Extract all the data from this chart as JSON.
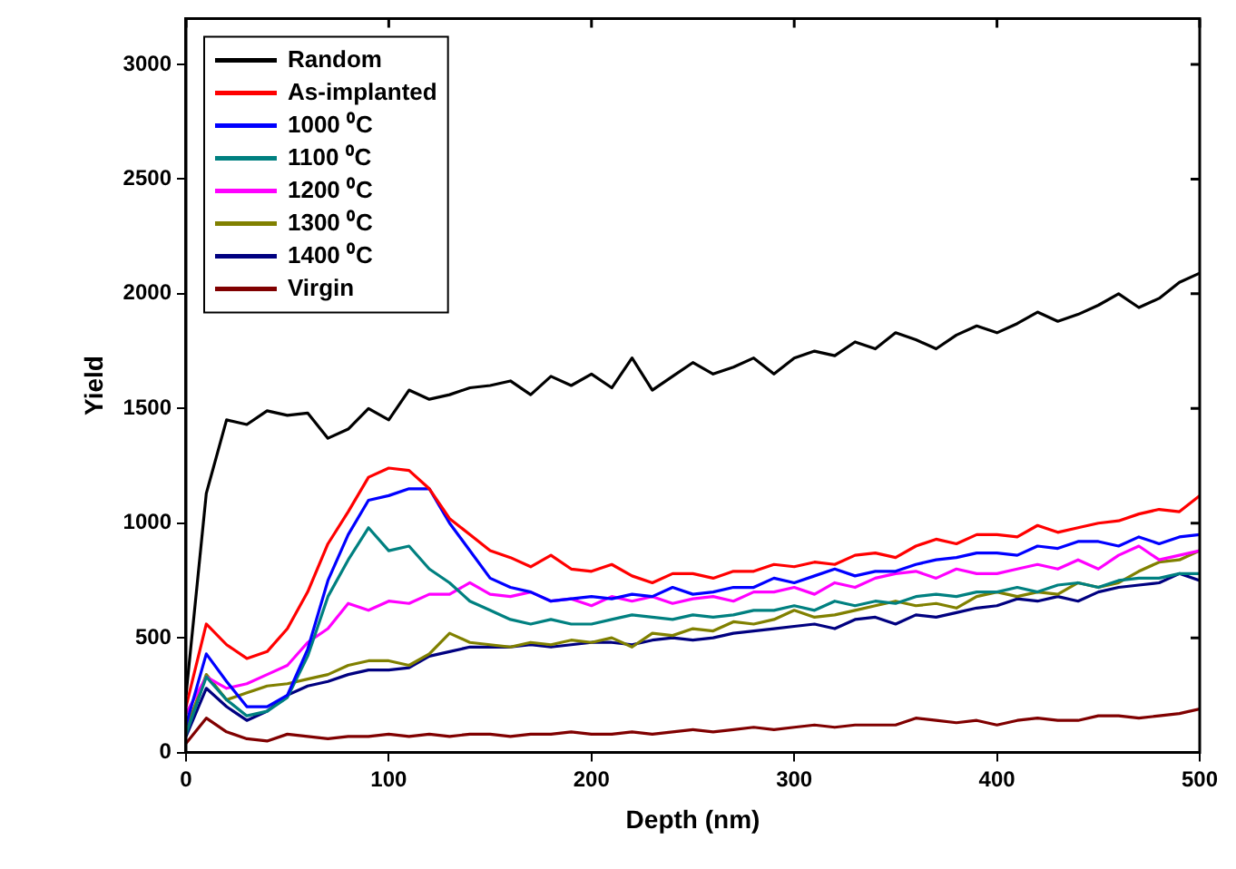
{
  "chart_data": {
    "type": "line",
    "xlabel": "Depth (nm)",
    "ylabel": "Yield",
    "x": [
      0,
      10,
      20,
      30,
      40,
      50,
      60,
      70,
      80,
      90,
      100,
      110,
      120,
      130,
      140,
      150,
      160,
      170,
      180,
      190,
      200,
      210,
      220,
      230,
      240,
      250,
      260,
      270,
      280,
      290,
      300,
      310,
      320,
      330,
      340,
      350,
      360,
      370,
      380,
      390,
      400,
      410,
      420,
      430,
      440,
      450,
      460,
      470,
      480,
      490,
      500
    ],
    "xlim": [
      0,
      500
    ],
    "xticks": [
      0,
      100,
      200,
      300,
      400,
      500
    ],
    "ylim": [
      0,
      3200
    ],
    "yticks": [
      0,
      500,
      1000,
      1500,
      2000,
      2500,
      3000
    ],
    "grid": false,
    "legend": "top left",
    "marker": "none",
    "line_style": "solid",
    "series": [
      {
        "name": "Random",
        "color": "#000000",
        "values": [
          250,
          1130,
          1450,
          1430,
          1490,
          1470,
          1480,
          1370,
          1410,
          1500,
          1450,
          1580,
          1540,
          1560,
          1590,
          1600,
          1620,
          1560,
          1640,
          1600,
          1650,
          1590,
          1720,
          1580,
          1640,
          1700,
          1650,
          1680,
          1720,
          1650,
          1720,
          1750,
          1730,
          1790,
          1760,
          1830,
          1800,
          1760,
          1820,
          1860,
          1830,
          1870,
          1920,
          1880,
          1910,
          1950,
          2000,
          1940,
          1980,
          2050,
          2090
        ]
      },
      {
        "name": "As-implanted",
        "color": "#ff0000",
        "values": [
          200,
          560,
          470,
          410,
          440,
          540,
          700,
          910,
          1050,
          1200,
          1240,
          1230,
          1150,
          1020,
          950,
          880,
          850,
          810,
          860,
          800,
          790,
          820,
          770,
          740,
          780,
          780,
          760,
          790,
          790,
          820,
          810,
          830,
          820,
          860,
          870,
          850,
          900,
          930,
          910,
          950,
          950,
          940,
          990,
          960,
          980,
          1000,
          1010,
          1040,
          1060,
          1050,
          1120
        ]
      },
      {
        "name": "1000 ⁰C",
        "color": "#0000ff",
        "values": [
          120,
          430,
          310,
          200,
          200,
          250,
          450,
          750,
          950,
          1100,
          1120,
          1150,
          1150,
          1000,
          880,
          760,
          720,
          700,
          660,
          670,
          680,
          670,
          690,
          680,
          720,
          690,
          700,
          720,
          720,
          760,
          740,
          770,
          800,
          770,
          790,
          790,
          820,
          840,
          850,
          870,
          870,
          860,
          900,
          890,
          920,
          920,
          900,
          940,
          910,
          940,
          950
        ]
      },
      {
        "name": "1100 ⁰C",
        "color": "#008080",
        "values": [
          80,
          330,
          230,
          160,
          180,
          240,
          420,
          680,
          840,
          980,
          880,
          900,
          800,
          740,
          660,
          620,
          580,
          560,
          580,
          560,
          560,
          580,
          600,
          590,
          580,
          600,
          590,
          600,
          620,
          620,
          640,
          620,
          660,
          640,
          660,
          650,
          680,
          690,
          680,
          700,
          700,
          720,
          700,
          730,
          740,
          720,
          750,
          760,
          760,
          780,
          780
        ]
      },
      {
        "name": "1200 ⁰C",
        "color": "#ff00ff",
        "values": [
          170,
          330,
          280,
          300,
          340,
          380,
          480,
          540,
          650,
          620,
          660,
          650,
          690,
          690,
          740,
          690,
          680,
          700,
          660,
          670,
          640,
          680,
          660,
          680,
          650,
          670,
          680,
          660,
          700,
          700,
          720,
          690,
          740,
          720,
          760,
          780,
          790,
          760,
          800,
          780,
          780,
          800,
          820,
          800,
          840,
          800,
          860,
          900,
          840,
          860,
          880
        ]
      },
      {
        "name": "1300 ⁰C",
        "color": "#808000",
        "values": [
          100,
          340,
          230,
          260,
          290,
          300,
          320,
          340,
          380,
          400,
          400,
          380,
          430,
          520,
          480,
          470,
          460,
          480,
          470,
          490,
          480,
          500,
          460,
          520,
          510,
          540,
          530,
          570,
          560,
          580,
          620,
          590,
          600,
          620,
          640,
          660,
          640,
          650,
          630,
          680,
          700,
          680,
          700,
          690,
          740,
          720,
          740,
          790,
          830,
          840,
          880
        ]
      },
      {
        "name": "1400 ⁰C",
        "color": "#000080",
        "values": [
          70,
          280,
          200,
          140,
          180,
          250,
          290,
          310,
          340,
          360,
          360,
          370,
          420,
          440,
          460,
          460,
          460,
          470,
          460,
          470,
          480,
          480,
          470,
          490,
          500,
          490,
          500,
          520,
          530,
          540,
          550,
          560,
          540,
          580,
          590,
          560,
          600,
          590,
          610,
          630,
          640,
          670,
          660,
          680,
          660,
          700,
          720,
          730,
          740,
          780,
          750
        ]
      },
      {
        "name": "Virgin",
        "color": "#800000",
        "values": [
          40,
          150,
          90,
          60,
          50,
          80,
          70,
          60,
          70,
          70,
          80,
          70,
          80,
          70,
          80,
          80,
          70,
          80,
          80,
          90,
          80,
          80,
          90,
          80,
          90,
          100,
          90,
          100,
          110,
          100,
          110,
          120,
          110,
          120,
          120,
          120,
          150,
          140,
          130,
          140,
          120,
          140,
          150,
          140,
          140,
          160,
          160,
          150,
          160,
          170,
          190
        ]
      }
    ]
  }
}
